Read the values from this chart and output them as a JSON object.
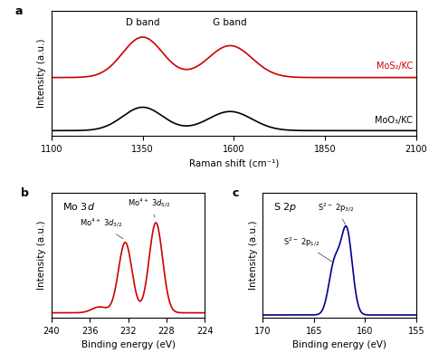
{
  "panel_a": {
    "xlabel": "Raman shift (cm⁻¹)",
    "ylabel": "Intensity (a.u.)",
    "xlim": [
      1100,
      2100
    ],
    "xticks": [
      1100,
      1350,
      1600,
      1850,
      2100
    ],
    "label_mos2": "MoS₂/KC",
    "label_moo3": "MoO₃/KC",
    "annotation_d": "D band",
    "annotation_g": "G band",
    "color_mos2": "#cc0000",
    "color_moo3": "#000000"
  },
  "panel_b": {
    "label": "Mo 3d",
    "xlabel": "Binding energy (eV)",
    "ylabel": "Intensity (a.u.)",
    "xlim": [
      240,
      224
    ],
    "xticks": [
      240,
      236,
      232,
      228,
      224
    ],
    "color": "#cc0000"
  },
  "panel_c": {
    "label": "S 2p",
    "xlabel": "Binding energy (eV)",
    "ylabel": "Intensity (a.u.)",
    "xlim": [
      170,
      155
    ],
    "xticks": [
      170,
      165,
      160,
      155
    ],
    "color": "#00008b"
  }
}
